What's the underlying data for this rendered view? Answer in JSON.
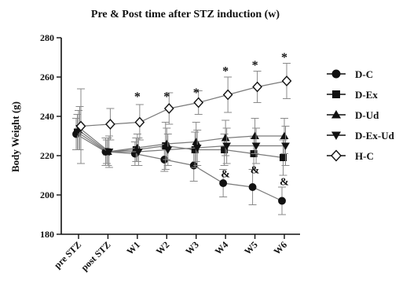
{
  "chart_data": {
    "type": "line",
    "title": "Pre & Post time after STZ induction (w)",
    "xlabel": "",
    "ylabel": "Body Weight (g)",
    "categories": [
      "pre STZ",
      "post STZ",
      "W1",
      "W2",
      "W3",
      "W4",
      "W5",
      "W6"
    ],
    "ylim": [
      180,
      280
    ],
    "yticks": [
      180,
      200,
      220,
      240,
      260,
      280
    ],
    "grid": false,
    "legend_position": "right",
    "series": [
      {
        "name": "D-C",
        "marker": "circle-filled",
        "values": [
          231,
          222,
          221,
          218,
          215,
          206,
          204,
          197
        ],
        "errors": [
          8,
          7,
          6,
          6,
          8,
          7,
          9,
          7
        ]
      },
      {
        "name": "D-Ex",
        "marker": "square-filled",
        "values": [
          232,
          222,
          223,
          225,
          223,
          223,
          221,
          219
        ],
        "errors": [
          9,
          6,
          6,
          12,
          9,
          8,
          8,
          9
        ]
      },
      {
        "name": "D-Ud",
        "marker": "triangle-up-filled",
        "values": [
          233,
          222,
          224,
          226,
          227,
          229,
          230,
          230
        ],
        "errors": [
          10,
          7,
          7,
          8,
          10,
          9,
          9,
          9
        ]
      },
      {
        "name": "D-Ex-Ud",
        "marker": "triangle-down-filled",
        "values": [
          234,
          222,
          222,
          223,
          224,
          225,
          225,
          225
        ],
        "errors": [
          11,
          8,
          7,
          8,
          9,
          9,
          9,
          10
        ]
      },
      {
        "name": "H-C",
        "marker": "diamond-open",
        "values": [
          235,
          236,
          237,
          244,
          247,
          251,
          255,
          258
        ],
        "errors": [
          19,
          8,
          9,
          8,
          6,
          9,
          8,
          9
        ]
      }
    ],
    "annotations": [
      {
        "text": "*",
        "category": "W1",
        "y": 250
      },
      {
        "text": "*",
        "category": "W2",
        "y": 250
      },
      {
        "text": "*",
        "category": "W3",
        "y": 252
      },
      {
        "text": "*",
        "category": "W4",
        "y": 263
      },
      {
        "text": "*",
        "category": "W5",
        "y": 266
      },
      {
        "text": "*",
        "category": "W6",
        "y": 270
      },
      {
        "text": "&",
        "category": "W4",
        "y": 211
      },
      {
        "text": "&",
        "category": "W5",
        "y": 213
      },
      {
        "text": "&",
        "category": "W6",
        "y": 207
      }
    ]
  },
  "colors": {
    "axis": "#111111",
    "line": "#7a7a7a",
    "error": "#8a8a8a",
    "marker": "#111111"
  }
}
